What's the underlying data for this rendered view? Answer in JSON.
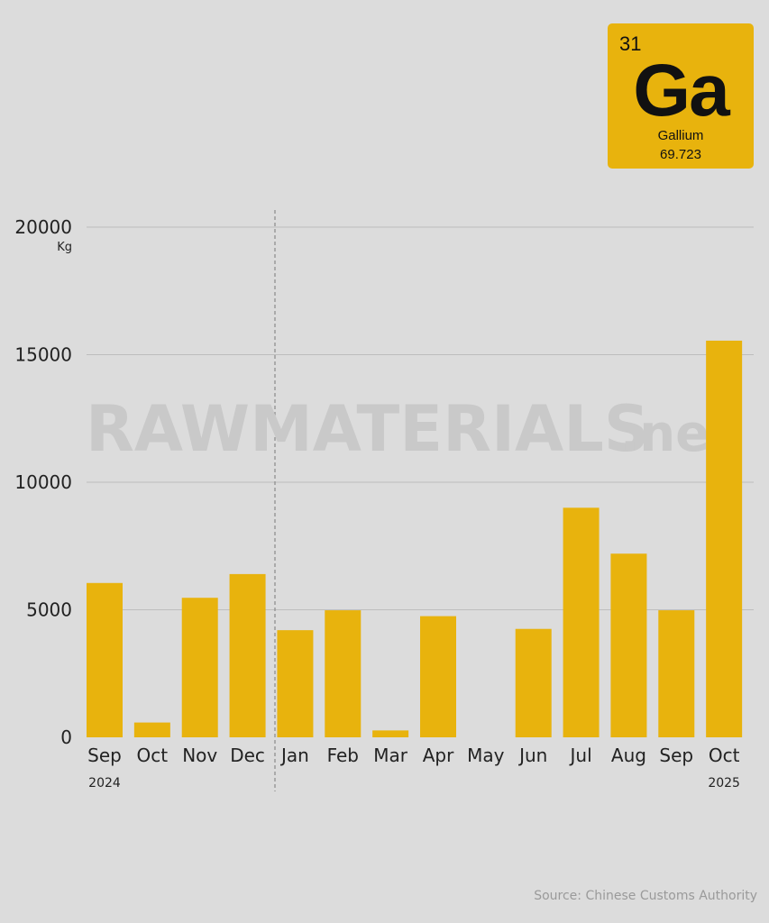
{
  "element": {
    "number": "31",
    "symbol": "Ga",
    "name": "Gallium",
    "mass": "69.723"
  },
  "watermark": {
    "main": "RAWMATERIALS",
    "suffix": ".net"
  },
  "source": "Source: Chinese Customs Authority",
  "colors": {
    "bar": "#e8b30d",
    "background": "#dcdcdc",
    "grid": "#bdbdbd",
    "divider": "#8a8a8a"
  },
  "chart_data": {
    "type": "bar",
    "categories": [
      "Sep",
      "Oct",
      "Nov",
      "Dec",
      "Jan",
      "Feb",
      "Mar",
      "Apr",
      "May",
      "Jun",
      "Jul",
      "Aug",
      "Sep",
      "Oct"
    ],
    "years": [
      {
        "label": "2024",
        "under_index": 0
      },
      {
        "label": "2025",
        "under_index": 13
      }
    ],
    "values": [
      6050,
      580,
      5470,
      6400,
      4200,
      4980,
      270,
      4750,
      0,
      4250,
      9000,
      7200,
      4980,
      15550
    ],
    "ylabel": "Kg",
    "yticks": [
      0,
      5000,
      10000,
      15000,
      20000
    ],
    "ylim": [
      0,
      20000
    ],
    "grid": true,
    "year_divider_after_index": 3
  }
}
